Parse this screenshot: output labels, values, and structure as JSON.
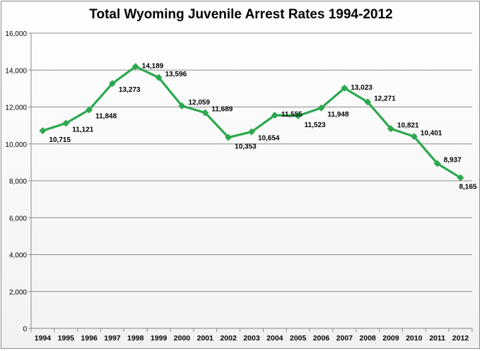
{
  "chart_data": {
    "type": "line",
    "title": "Total Wyoming Juvenile Arrest Rates 1994-2012",
    "xlabel": "",
    "ylabel": "",
    "ylim": [
      0,
      16000
    ],
    "yticks": [
      "0",
      "2,000",
      "4,000",
      "6,000",
      "8,000",
      "10,000",
      "12,000",
      "14,000",
      "16,000"
    ],
    "categories": [
      "1994",
      "1995",
      "1996",
      "1997",
      "1998",
      "1999",
      "2000",
      "2001",
      "2002",
      "2003",
      "2004",
      "2005",
      "2006",
      "2007",
      "2008",
      "2009",
      "2010",
      "2011",
      "2012"
    ],
    "series": [
      {
        "values": [
          10715,
          11121,
          11848,
          13273,
          14189,
          13596,
          12059,
          11689,
          10353,
          10654,
          11555,
          11523,
          11948,
          13023,
          12271,
          10821,
          10401,
          8937,
          8165
        ],
        "labels": [
          "10,715",
          "11,121",
          "11,848",
          "13,273",
          "14,189",
          "13,596",
          "12,059",
          "11,689",
          "10,353",
          "10,654",
          "11,555",
          "11,523",
          "11,948",
          "13,023",
          "12,271",
          "10,821",
          "10,401",
          "8,937",
          "8,165"
        ],
        "color": "#2ca84f"
      }
    ],
    "grid": true,
    "legend": "none"
  }
}
